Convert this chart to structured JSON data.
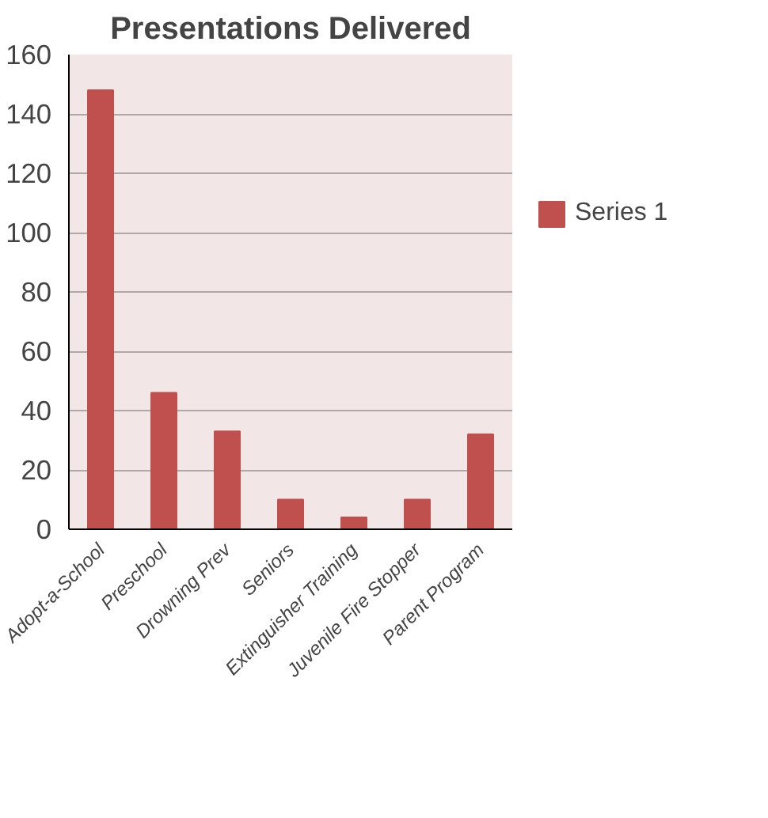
{
  "chart_data": {
    "type": "bar",
    "title": "Presentations Delivered",
    "categories": [
      "Adopt-a-School",
      "Preschool",
      "Drowning Prev",
      "Seniors",
      "Extinguisher Training",
      "Juvenile Fire Stopper",
      "Parent Program"
    ],
    "series": [
      {
        "name": "Series 1",
        "color": "#c0504d",
        "values": [
          148,
          46,
          33,
          10,
          4,
          10,
          32
        ]
      }
    ],
    "ylim": [
      0,
      160
    ],
    "yticks": [
      0,
      20,
      40,
      60,
      80,
      100,
      120,
      140,
      160
    ],
    "grid": "y",
    "legend": "right"
  }
}
